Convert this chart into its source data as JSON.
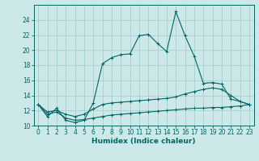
{
  "xlabel": "Humidex (Indice chaleur)",
  "x": [
    0,
    1,
    2,
    3,
    4,
    5,
    6,
    7,
    8,
    9,
    10,
    11,
    12,
    13,
    14,
    15,
    16,
    17,
    18,
    19,
    20,
    21,
    22,
    23
  ],
  "line1": [
    12.8,
    11.2,
    12.3,
    10.7,
    10.4,
    10.7,
    13.0,
    18.2,
    19.0,
    19.4,
    19.5,
    21.9,
    22.1,
    20.9,
    19.8,
    25.1,
    21.9,
    19.2,
    15.6,
    15.7,
    15.5,
    13.5,
    13.2,
    12.8
  ],
  "line2": [
    12.8,
    11.8,
    12.0,
    11.5,
    11.2,
    11.5,
    12.2,
    12.8,
    13.0,
    13.1,
    13.2,
    13.3,
    13.4,
    13.5,
    13.6,
    13.8,
    14.2,
    14.5,
    14.8,
    15.0,
    14.8,
    14.0,
    13.2,
    12.8
  ],
  "line3": [
    12.8,
    11.5,
    11.8,
    11.0,
    10.7,
    10.8,
    11.0,
    11.2,
    11.4,
    11.5,
    11.6,
    11.7,
    11.8,
    11.9,
    12.0,
    12.1,
    12.2,
    12.3,
    12.3,
    12.4,
    12.4,
    12.5,
    12.6,
    12.8
  ],
  "background_color": "#cce8e8",
  "grid_color": "#99cccc",
  "line_color": "#006666",
  "ylim": [
    10,
    26
  ],
  "xlim": [
    -0.5,
    23.5
  ],
  "yticks": [
    10,
    12,
    14,
    16,
    18,
    20,
    22,
    24
  ],
  "xticks": [
    0,
    1,
    2,
    3,
    4,
    5,
    6,
    7,
    8,
    9,
    10,
    11,
    12,
    13,
    14,
    15,
    16,
    17,
    18,
    19,
    20,
    21,
    22,
    23
  ],
  "tick_fontsize": 5.5,
  "xlabel_fontsize": 6.5,
  "linewidth": 0.8,
  "markersize": 2.5
}
